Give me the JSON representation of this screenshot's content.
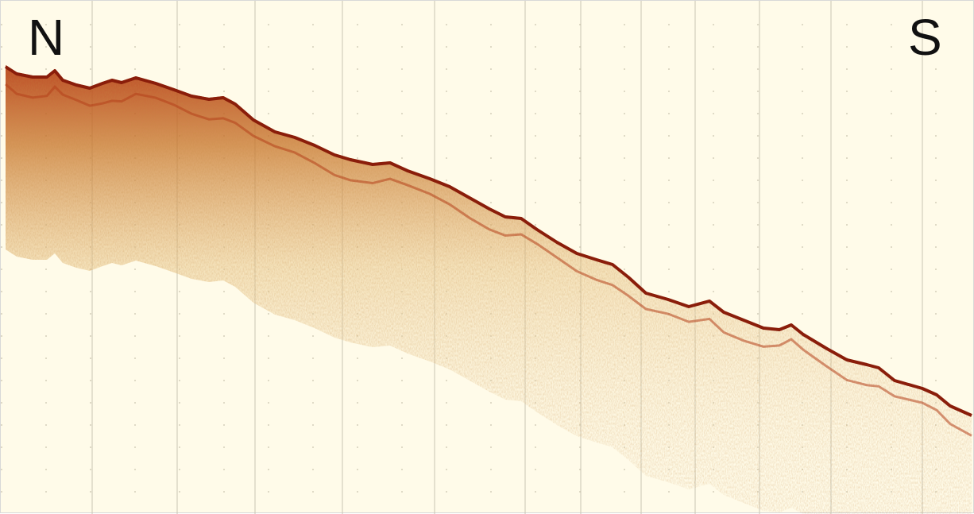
{
  "profile": {
    "labels": {
      "left": "N",
      "right": "S"
    },
    "colors": {
      "background": "#fffbe9",
      "grid_major": "#c9c5b4",
      "grid_minor": "#bfb9a2",
      "surface": "#8a1d0a",
      "echo_dark": "#a8330f",
      "echo_mid": "#c8752a",
      "echo_light": "#e8c483",
      "label": "#111111"
    }
  }
}
